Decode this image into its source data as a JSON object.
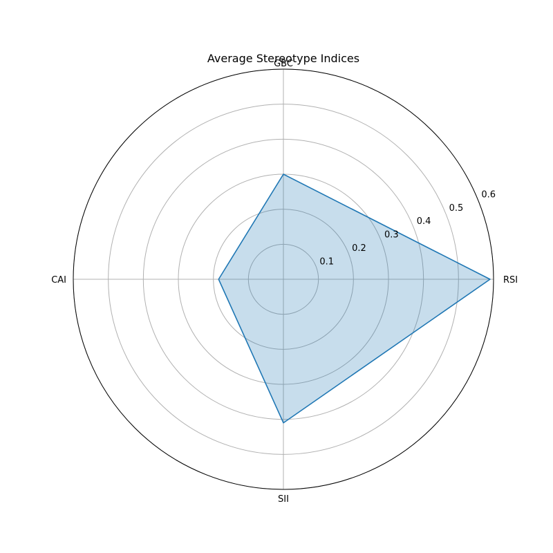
{
  "chart_data": {
    "type": "radar",
    "title": "Average Stereotype Indices",
    "categories": [
      "RSI",
      "GBC",
      "CAI",
      "SII"
    ],
    "values": [
      0.59,
      0.3,
      0.185,
      0.41
    ],
    "radial_ticks": [
      "0.1",
      "0.2",
      "0.3",
      "0.4",
      "0.5",
      "0.6"
    ],
    "radial_tick_values": [
      0.1,
      0.2,
      0.3,
      0.4,
      0.5,
      0.6
    ],
    "rmax": 0.6,
    "grid": true,
    "colors": {
      "line": "#1f77b4",
      "fill": "#1f77b4",
      "grid": "#b0b0b0",
      "frame": "#000000"
    }
  }
}
